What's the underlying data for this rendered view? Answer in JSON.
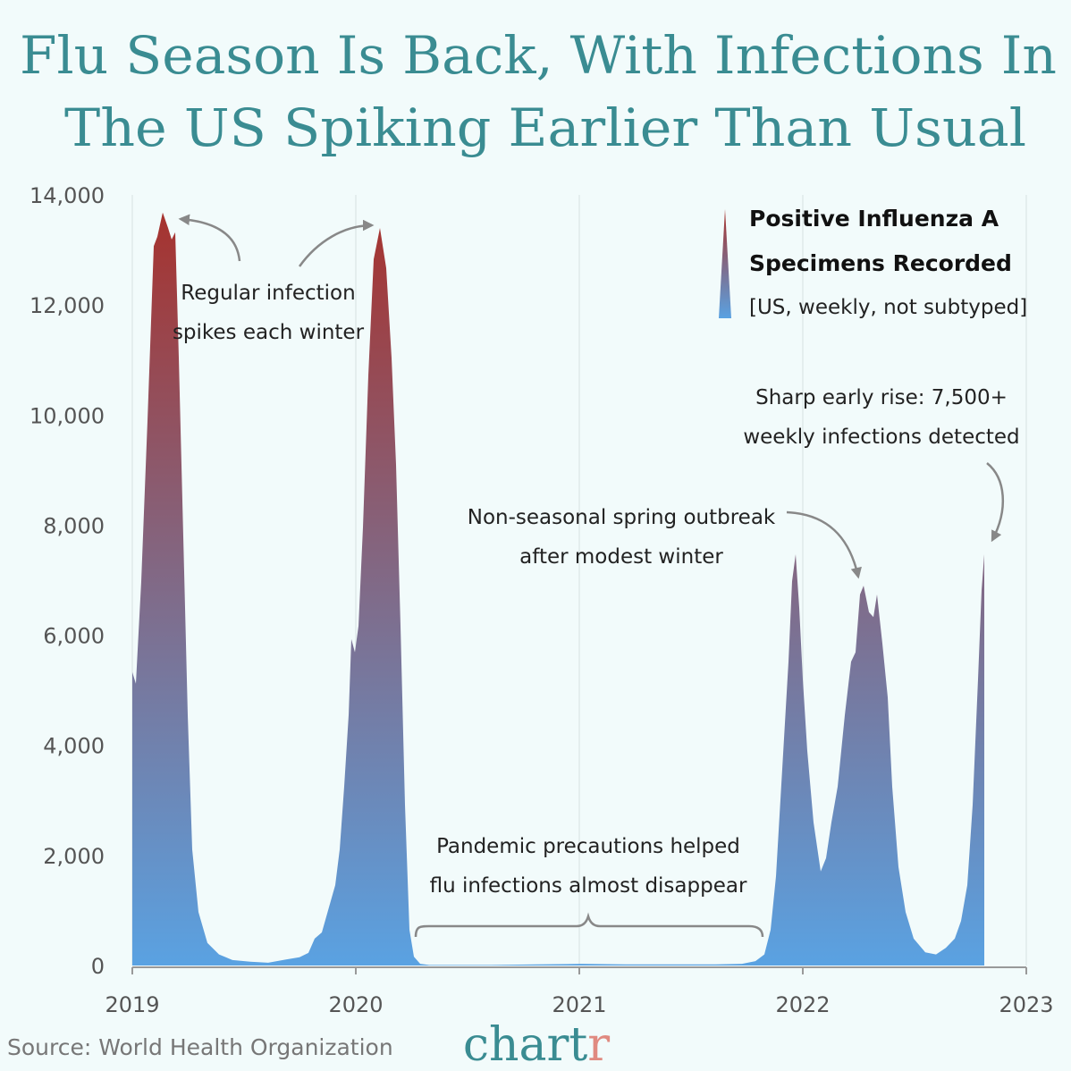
{
  "chart_data": {
    "type": "area",
    "title_lines": [
      "Flu Season Is Back, With Infections In",
      "The US Spiking Earlier Than Usual"
    ],
    "legend_lines": [
      "Positive Influenza A",
      "Specimens Recorded",
      "[US, weekly, not subtyped]"
    ],
    "annotations": [
      [
        "Regular infection",
        "spikes each winter"
      ],
      [
        "Sharp early rise: 7,500+",
        "weekly infections detected"
      ],
      [
        "Non-seasonal spring outbreak",
        "after modest winter"
      ],
      [
        "Pandemic precautions helped",
        "flu infections almost disappear"
      ]
    ],
    "source": "Source: World Health Organization",
    "brand": [
      "chart",
      "r"
    ],
    "gradient_colors": [
      "#a8302a",
      "#5aa2e2"
    ],
    "grid": true,
    "xlim": [
      2019,
      2023
    ],
    "xticks": [
      2019,
      2020,
      2021,
      2022,
      2023
    ],
    "ylim": [
      0,
      14000
    ],
    "yticks": [
      0,
      {
        "value": 2000,
        "label": "2,000"
      },
      {
        "value": 4000,
        "label": "4,000"
      },
      {
        "value": 6000,
        "label": "6,000"
      },
      {
        "value": 8000,
        "label": "8,000"
      },
      {
        "value": 10000,
        "label": "10,000"
      },
      {
        "value": 12000,
        "label": "12,000"
      },
      {
        "value": 14000,
        "label": "14,000"
      }
    ],
    "x": [
      2019.0,
      2019.016,
      2019.04,
      2019.068,
      2019.096,
      2019.112,
      2019.136,
      2019.16,
      2019.176,
      2019.192,
      2019.208,
      2019.228,
      2019.248,
      2019.268,
      2019.296,
      2019.336,
      2019.388,
      2019.448,
      2019.528,
      2019.608,
      2019.688,
      2019.748,
      2019.788,
      2019.816,
      2019.848,
      2019.88,
      2019.908,
      2019.928,
      2019.948,
      2019.968,
      2019.98,
      2019.996,
      2020.012,
      2020.032,
      2020.056,
      2020.08,
      2020.108,
      2020.136,
      2020.16,
      2020.18,
      2020.2,
      2020.22,
      2020.24,
      2020.26,
      2020.288,
      2020.328,
      2020.408,
      2020.608,
      2020.808,
      2021.008,
      2021.208,
      2021.408,
      2021.608,
      2021.728,
      2021.788,
      2021.828,
      2021.856,
      2021.88,
      2021.908,
      2021.936,
      2021.952,
      2021.968,
      2021.984,
      2022.0,
      2022.02,
      2022.048,
      2022.08,
      2022.104,
      2022.128,
      2022.156,
      2022.188,
      2022.216,
      2022.236,
      2022.256,
      2022.272,
      2022.296,
      2022.316,
      2022.332,
      2022.356,
      2022.38,
      2022.4,
      2022.428,
      2022.46,
      2022.496,
      2022.548,
      2022.596,
      2022.64,
      2022.68,
      2022.708,
      2022.736,
      2022.76,
      2022.784,
      2022.8,
      2022.812
    ],
    "values": [
      5330,
      5120,
      6980,
      9900,
      13070,
      13240,
      13680,
      13400,
      13190,
      13320,
      11040,
      7800,
      4550,
      2110,
      970,
      410,
      200,
      100,
      70,
      50,
      110,
      150,
      230,
      490,
      600,
      1060,
      1460,
      2110,
      3250,
      4550,
      5930,
      5690,
      6170,
      7960,
      10720,
      12830,
      13400,
      12670,
      11040,
      9100,
      6170,
      2920,
      650,
      160,
      30,
      10,
      10,
      10,
      20,
      30,
      20,
      20,
      20,
      30,
      80,
      200,
      650,
      1620,
      3570,
      5520,
      6980,
      7470,
      6500,
      5200,
      3900,
      2600,
      1710,
      1950,
      2600,
      3250,
      4550,
      5520,
      5690,
      6740,
      6900,
      6420,
      6330,
      6740,
      5850,
      4870,
      3250,
      1790,
      970,
      490,
      240,
      200,
      320,
      490,
      810,
      1460,
      2920,
      5200,
      6820,
      7470
    ]
  }
}
